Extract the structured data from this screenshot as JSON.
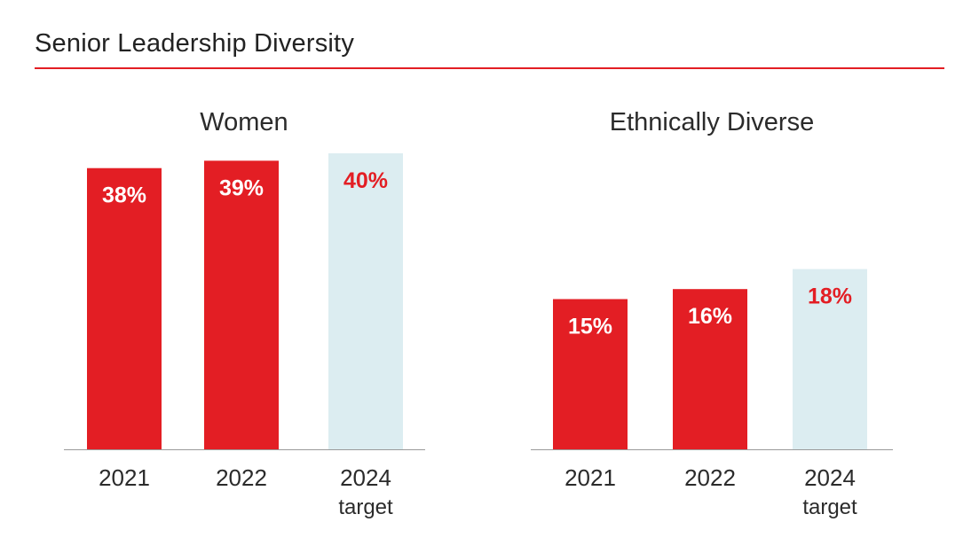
{
  "title": "Senior Leadership Diversity",
  "colors": {
    "accent": "#e31e24",
    "target_bar": "#dcedf1",
    "actual_label": "#ffffff",
    "target_label": "#e31e24",
    "axis": "#9a9a9a"
  },
  "chart_data": [
    {
      "type": "bar",
      "title": "Women",
      "categories": [
        "2021",
        "2022",
        "2024 target"
      ],
      "category_lines": [
        [
          "2021"
        ],
        [
          "2022"
        ],
        [
          "2024",
          "target"
        ]
      ],
      "values": [
        38,
        39,
        40
      ],
      "value_labels": [
        "38%",
        "39%",
        "40%"
      ],
      "is_target": [
        false,
        false,
        true
      ],
      "ylim": [
        0,
        40.6
      ],
      "grid": false,
      "legend": "none"
    },
    {
      "type": "bar",
      "title": "Ethnically Diverse",
      "categories": [
        "2021",
        "2022",
        "2024 target"
      ],
      "category_lines": [
        [
          "2021"
        ],
        [
          "2022"
        ],
        [
          "2024",
          "target"
        ]
      ],
      "values": [
        15,
        16,
        18
      ],
      "value_labels": [
        "15%",
        "16%",
        "18%"
      ],
      "is_target": [
        false,
        false,
        true
      ],
      "ylim": [
        0,
        30
      ],
      "grid": false,
      "legend": "none"
    }
  ]
}
